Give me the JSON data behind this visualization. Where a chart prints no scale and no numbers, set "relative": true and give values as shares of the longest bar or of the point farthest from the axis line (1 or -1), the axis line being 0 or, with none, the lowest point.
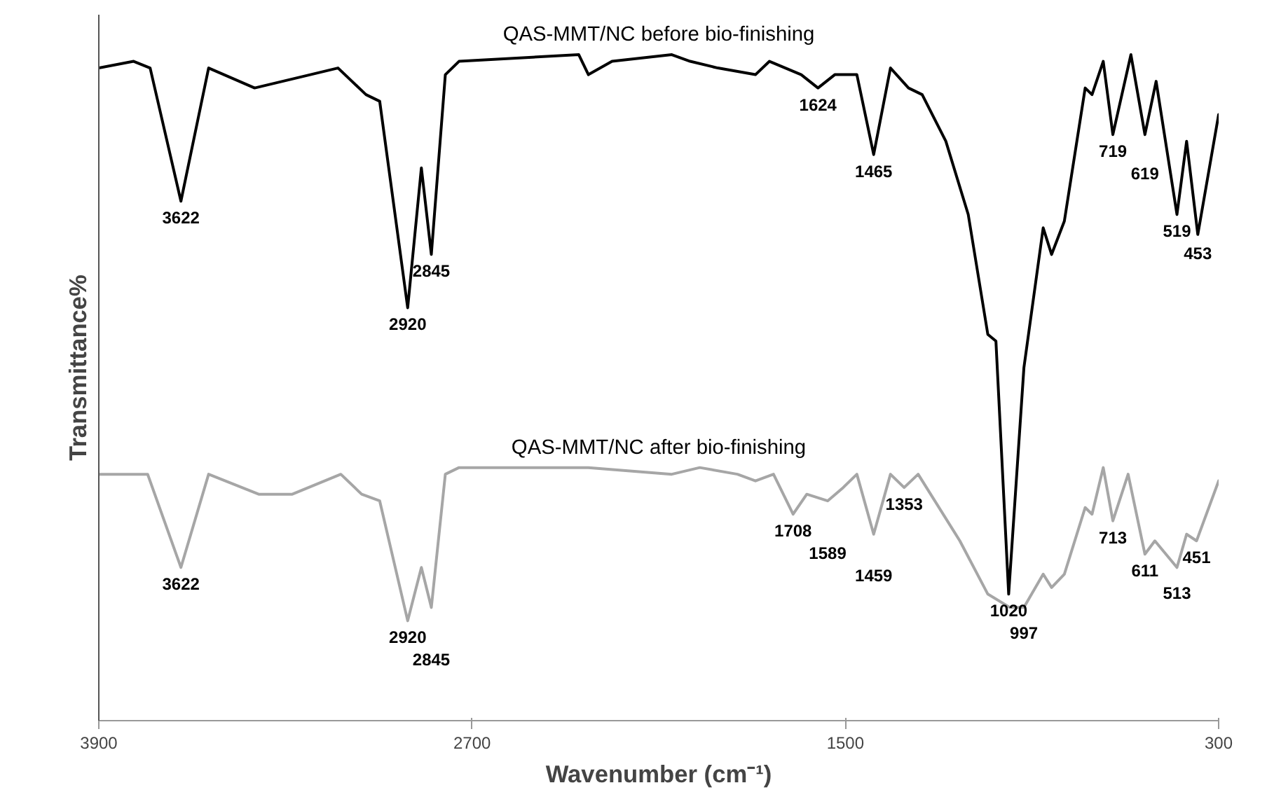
{
  "chart_data": {
    "type": "line",
    "relative": true,
    "xlabel": "Wavenumber (cm⁻¹)",
    "ylabel": "Transmittance%",
    "xlim": [
      3900,
      300
    ],
    "xticks": [
      3900,
      2700,
      1500,
      300
    ],
    "grid": false,
    "marker": "none",
    "line_style": "solid",
    "series": [
      {
        "name": "QAS-MMT/NC before bio-finishing",
        "color": "#000000",
        "x": [
          3900,
          3788,
          3735,
          3636,
          3547,
          3399,
          3220,
          3131,
          3041,
          2997,
          2907,
          2863,
          2831,
          2786,
          2742,
          2357,
          2326,
          2250,
          2058,
          1999,
          1910,
          1789,
          1744,
          1642,
          1588,
          1534,
          1463,
          1409,
          1355,
          1297,
          1253,
          1177,
          1105,
          1042,
          1016,
          975,
          926,
          864,
          837,
          796,
          729,
          707,
          671,
          640,
          582,
          537,
          501,
          434,
          403,
          367,
          300
        ],
        "values": [
          0.98,
          0.99,
          0.98,
          0.78,
          0.98,
          0.95,
          0.97,
          0.98,
          0.94,
          0.93,
          0.62,
          0.83,
          0.7,
          0.97,
          0.99,
          1.0,
          0.97,
          0.99,
          1.0,
          0.99,
          0.98,
          0.97,
          0.99,
          0.97,
          0.95,
          0.97,
          0.97,
          0.85,
          0.98,
          0.95,
          0.94,
          0.87,
          0.76,
          0.58,
          0.57,
          0.19,
          0.53,
          0.74,
          0.7,
          0.75,
          0.95,
          0.94,
          0.99,
          0.88,
          1.0,
          0.88,
          0.96,
          0.76,
          0.87,
          0.73,
          0.91
        ]
      },
      {
        "name": "QAS-MMT/NC after bio-finishing",
        "color": "#a6a6a6",
        "x": [
          3900,
          3743,
          3636,
          3547,
          3386,
          3278,
          3122,
          3055,
          2997,
          2907,
          2863,
          2831,
          2786,
          2742,
          2326,
          2058,
          1968,
          1847,
          1789,
          1731,
          1668,
          1624,
          1557,
          1507,
          1463,
          1409,
          1355,
          1311,
          1266,
          1132,
          1042,
          971,
          926,
          864,
          837,
          796,
          729,
          707,
          671,
          640,
          591,
          537,
          505,
          434,
          403,
          371,
          300
        ],
        "values": [
          0.37,
          0.37,
          0.23,
          0.37,
          0.34,
          0.34,
          0.37,
          0.34,
          0.33,
          0.15,
          0.23,
          0.17,
          0.37,
          0.38,
          0.38,
          0.37,
          0.38,
          0.37,
          0.36,
          0.37,
          0.31,
          0.34,
          0.33,
          0.35,
          0.37,
          0.28,
          0.37,
          0.35,
          0.37,
          0.27,
          0.19,
          0.17,
          0.17,
          0.22,
          0.2,
          0.22,
          0.32,
          0.31,
          0.38,
          0.3,
          0.37,
          0.25,
          0.27,
          0.23,
          0.28,
          0.27,
          0.36
        ]
      }
    ],
    "annotations": [
      {
        "text": "3622",
        "x": 3636,
        "y": 0.78
      },
      {
        "text": "2920",
        "x": 2907,
        "y": 0.62
      },
      {
        "text": "2845",
        "x": 2831,
        "y": 0.7
      },
      {
        "text": "1624",
        "x": 1588,
        "y": 0.95
      },
      {
        "text": "1465",
        "x": 1409,
        "y": 0.85
      },
      {
        "text": "1020",
        "x": 975,
        "y": 0.19
      },
      {
        "text": "719",
        "x": 640,
        "y": 0.88
      },
      {
        "text": "619",
        "x": 537,
        "y": 0.88
      },
      {
        "text": "519",
        "x": 434,
        "y": 0.76
      },
      {
        "text": "453",
        "x": 367,
        "y": 0.73
      },
      {
        "text": "3622",
        "x": 3636,
        "y": 0.23
      },
      {
        "text": "2920",
        "x": 2907,
        "y": 0.15
      },
      {
        "text": "2845",
        "x": 2831,
        "y": 0.17
      },
      {
        "text": "1708",
        "x": 1668,
        "y": 0.31
      },
      {
        "text": "1589",
        "x": 1557,
        "y": 0.33
      },
      {
        "text": "1459",
        "x": 1409,
        "y": 0.28
      },
      {
        "text": "1353",
        "x": 1311,
        "y": 0.35
      },
      {
        "text": "997",
        "x": 926,
        "y": 0.17
      },
      {
        "text": "713",
        "x": 640,
        "y": 0.3
      },
      {
        "text": "611",
        "x": 537,
        "y": 0.25
      },
      {
        "text": "513",
        "x": 434,
        "y": 0.23
      },
      {
        "text": "451",
        "x": 371,
        "y": 0.27
      }
    ]
  }
}
